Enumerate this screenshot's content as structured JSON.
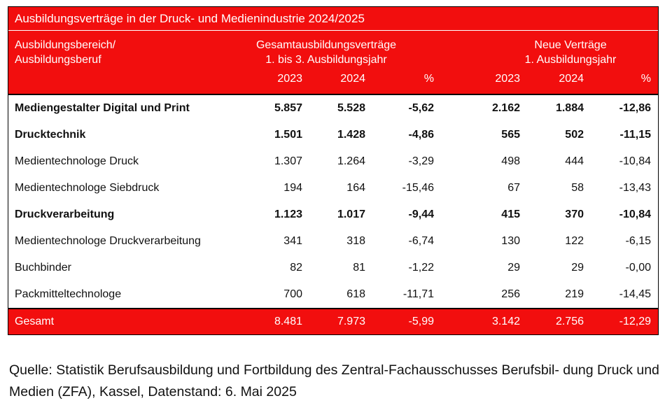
{
  "title": "Ausbildungsverträge in der Druck- und Medienindustrie 2024/2025",
  "header": {
    "area_line1": "Ausbildungsbereich/",
    "area_line2": "Ausbildungsberuf",
    "group1_line1": "Gesamtausbildungsverträge",
    "group1_line2": "1. bis 3. Ausbildungsjahr",
    "group2_line1": "Neue Verträge",
    "group2_line2": "1. Ausbildungsjahr",
    "cols": [
      "2023",
      "2024",
      "%",
      "2023",
      "2024",
      "%"
    ]
  },
  "rows": [
    {
      "label": "Mediengestalter Digital und Print",
      "bold": true,
      "v": [
        "5.857",
        "5.528",
        "-5,62",
        "2.162",
        "1.884",
        "-12,86"
      ]
    },
    {
      "label": "Drucktechnik",
      "bold": true,
      "v": [
        "1.501",
        "1.428",
        "-4,86",
        "565",
        "502",
        "-11,15"
      ]
    },
    {
      "label": "Medientechnologe Druck",
      "bold": false,
      "v": [
        "1.307",
        "1.264",
        "-3,29",
        "498",
        "444",
        "-10,84"
      ]
    },
    {
      "label": "Medientechnologe Siebdruck",
      "bold": false,
      "v": [
        "194",
        "164",
        "-15,46",
        "67",
        "58",
        "-13,43"
      ]
    },
    {
      "label": "Druckverarbeitung",
      "bold": true,
      "v": [
        "1.123",
        "1.017",
        "-9,44",
        "415",
        "370",
        "-10,84"
      ]
    },
    {
      "label": "Medientechnologe Druckverarbeitung",
      "bold": false,
      "v": [
        "341",
        "318",
        "-6,74",
        "130",
        "122",
        "-6,15"
      ]
    },
    {
      "label": "Buchbinder",
      "bold": false,
      "v": [
        "82",
        "81",
        "-1,22",
        "29",
        "29",
        "-0,00"
      ]
    },
    {
      "label": "Packmitteltechnologe",
      "bold": false,
      "v": [
        "700",
        "618",
        "-11,71",
        "256",
        "219",
        "-14,45"
      ]
    }
  ],
  "total": {
    "label": "Gesamt",
    "v": [
      "8.481",
      "7.973",
      "-5,99",
      "3.142",
      "2.756",
      "-12,29"
    ]
  },
  "source": "Quelle: Statistik Berufsausbildung und Fortbildung des Zentral-Fachausschusses Berufsbil- dung Druck und Medien (ZFA), Kassel, Datenstand: 6. Mai 2025",
  "colors": {
    "accent_red": "#f20e0e"
  }
}
